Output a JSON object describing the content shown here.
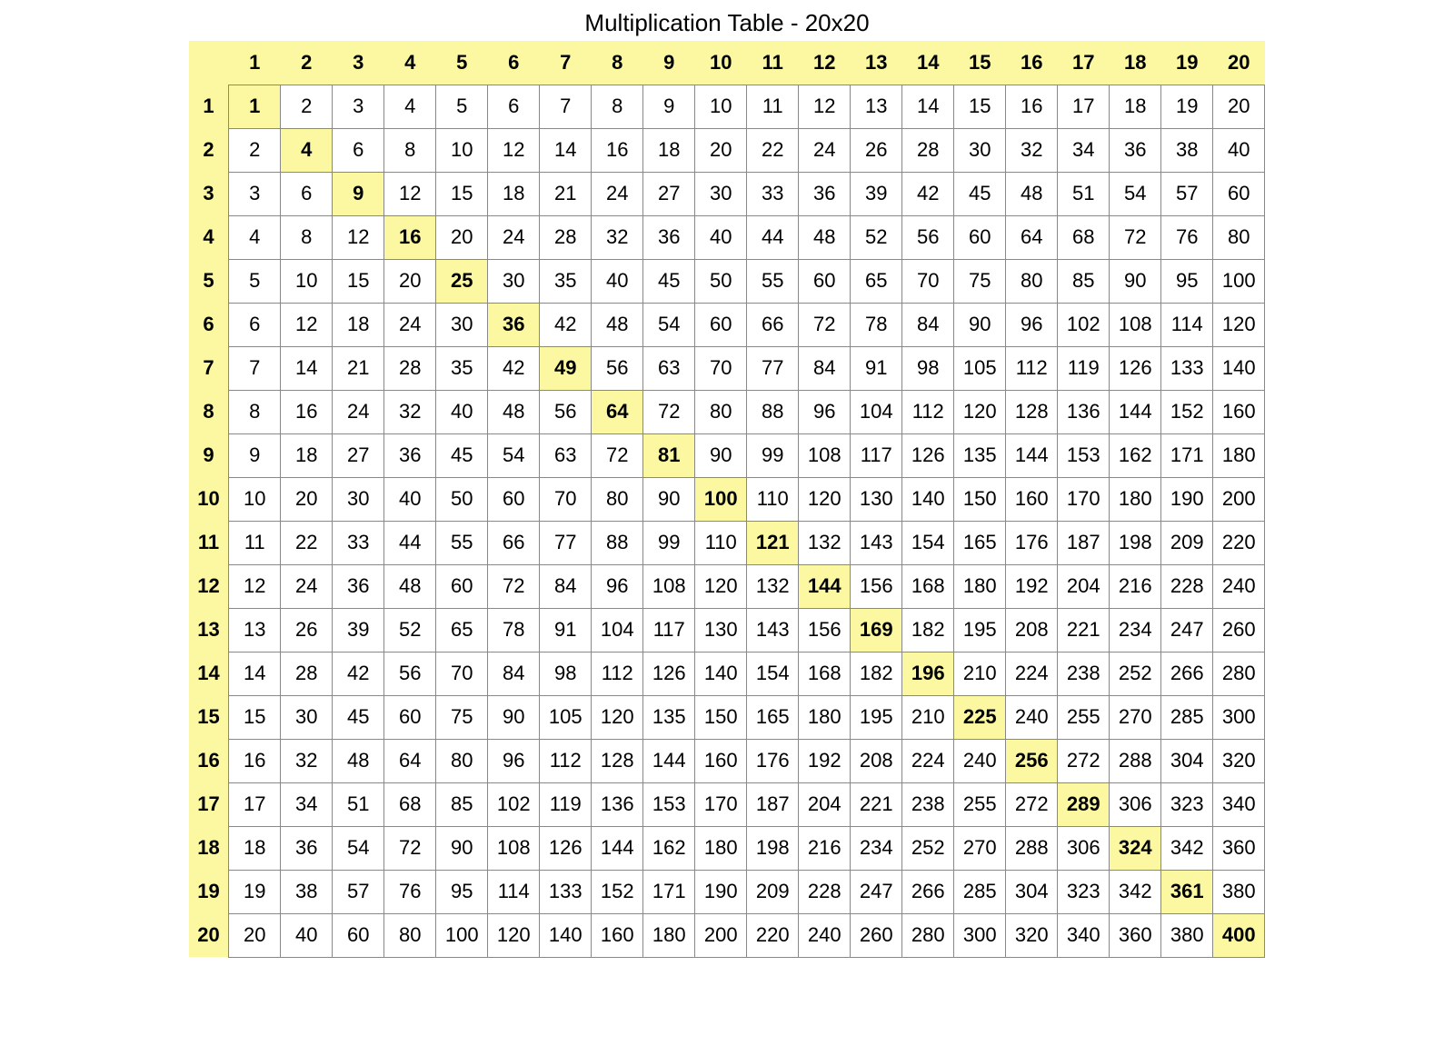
{
  "title": "Multiplication Table - 20x20",
  "size": 20,
  "colors": {
    "header_bg": "#fbf8a1",
    "diagonal_bg": "#fbf8a1",
    "cell_bg": "#ffffff",
    "border": "#888888",
    "text": "#000000"
  },
  "typography": {
    "title_fontsize": 26,
    "cell_fontsize": 22,
    "font_family": "Verdana, Geneva, sans-serif",
    "header_weight": "bold",
    "diagonal_weight": "bold"
  },
  "col_headers": [
    1,
    2,
    3,
    4,
    5,
    6,
    7,
    8,
    9,
    10,
    11,
    12,
    13,
    14,
    15,
    16,
    17,
    18,
    19,
    20
  ],
  "row_headers": [
    1,
    2,
    3,
    4,
    5,
    6,
    7,
    8,
    9,
    10,
    11,
    12,
    13,
    14,
    15,
    16,
    17,
    18,
    19,
    20
  ],
  "rows": [
    [
      1,
      2,
      3,
      4,
      5,
      6,
      7,
      8,
      9,
      10,
      11,
      12,
      13,
      14,
      15,
      16,
      17,
      18,
      19,
      20
    ],
    [
      2,
      4,
      6,
      8,
      10,
      12,
      14,
      16,
      18,
      20,
      22,
      24,
      26,
      28,
      30,
      32,
      34,
      36,
      38,
      40
    ],
    [
      3,
      6,
      9,
      12,
      15,
      18,
      21,
      24,
      27,
      30,
      33,
      36,
      39,
      42,
      45,
      48,
      51,
      54,
      57,
      60
    ],
    [
      4,
      8,
      12,
      16,
      20,
      24,
      28,
      32,
      36,
      40,
      44,
      48,
      52,
      56,
      60,
      64,
      68,
      72,
      76,
      80
    ],
    [
      5,
      10,
      15,
      20,
      25,
      30,
      35,
      40,
      45,
      50,
      55,
      60,
      65,
      70,
      75,
      80,
      85,
      90,
      95,
      100
    ],
    [
      6,
      12,
      18,
      24,
      30,
      36,
      42,
      48,
      54,
      60,
      66,
      72,
      78,
      84,
      90,
      96,
      102,
      108,
      114,
      120
    ],
    [
      7,
      14,
      21,
      28,
      35,
      42,
      49,
      56,
      63,
      70,
      77,
      84,
      91,
      98,
      105,
      112,
      119,
      126,
      133,
      140
    ],
    [
      8,
      16,
      24,
      32,
      40,
      48,
      56,
      64,
      72,
      80,
      88,
      96,
      104,
      112,
      120,
      128,
      136,
      144,
      152,
      160
    ],
    [
      9,
      18,
      27,
      36,
      45,
      54,
      63,
      72,
      81,
      90,
      99,
      108,
      117,
      126,
      135,
      144,
      153,
      162,
      171,
      180
    ],
    [
      10,
      20,
      30,
      40,
      50,
      60,
      70,
      80,
      90,
      100,
      110,
      120,
      130,
      140,
      150,
      160,
      170,
      180,
      190,
      200
    ],
    [
      11,
      22,
      33,
      44,
      55,
      66,
      77,
      88,
      99,
      110,
      121,
      132,
      143,
      154,
      165,
      176,
      187,
      198,
      209,
      220
    ],
    [
      12,
      24,
      36,
      48,
      60,
      72,
      84,
      96,
      108,
      120,
      132,
      144,
      156,
      168,
      180,
      192,
      204,
      216,
      228,
      240
    ],
    [
      13,
      26,
      39,
      52,
      65,
      78,
      91,
      104,
      117,
      130,
      143,
      156,
      169,
      182,
      195,
      208,
      221,
      234,
      247,
      260
    ],
    [
      14,
      28,
      42,
      56,
      70,
      84,
      98,
      112,
      126,
      140,
      154,
      168,
      182,
      196,
      210,
      224,
      238,
      252,
      266,
      280
    ],
    [
      15,
      30,
      45,
      60,
      75,
      90,
      105,
      120,
      135,
      150,
      165,
      180,
      195,
      210,
      225,
      240,
      255,
      270,
      285,
      300
    ],
    [
      16,
      32,
      48,
      64,
      80,
      96,
      112,
      128,
      144,
      160,
      176,
      192,
      208,
      224,
      240,
      256,
      272,
      288,
      304,
      320
    ],
    [
      17,
      34,
      51,
      68,
      85,
      102,
      119,
      136,
      153,
      170,
      187,
      204,
      221,
      238,
      255,
      272,
      289,
      306,
      323,
      340
    ],
    [
      18,
      36,
      54,
      72,
      90,
      108,
      126,
      144,
      162,
      180,
      198,
      216,
      234,
      252,
      270,
      288,
      306,
      324,
      342,
      360
    ],
    [
      19,
      38,
      57,
      76,
      95,
      114,
      133,
      152,
      171,
      190,
      209,
      228,
      247,
      266,
      285,
      304,
      323,
      342,
      361,
      380
    ],
    [
      20,
      40,
      60,
      80,
      100,
      120,
      140,
      160,
      180,
      200,
      220,
      240,
      260,
      280,
      300,
      320,
      340,
      360,
      380,
      400
    ]
  ]
}
